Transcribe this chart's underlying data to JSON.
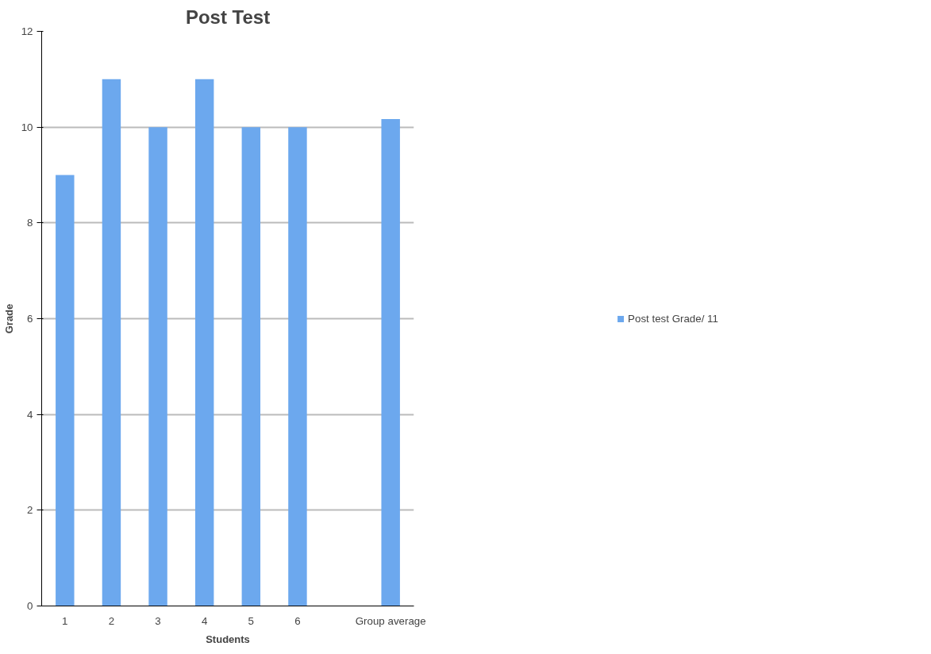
{
  "chart_data": {
    "type": "bar",
    "title": "Post Test",
    "xlabel": "Students",
    "ylabel": "Grade",
    "categories": [
      "1",
      "2",
      "3",
      "4",
      "5",
      "6",
      null,
      "Group average"
    ],
    "series": [
      {
        "name": "Post test Grade/ 11",
        "color": "#6ca8ee",
        "values": [
          9,
          11,
          10,
          11,
          10,
          10,
          null,
          10.17
        ]
      }
    ],
    "ylim": [
      0,
      12
    ],
    "yticks": [
      0,
      2,
      4,
      6,
      8,
      10,
      12
    ],
    "grid": "y",
    "legend": "right"
  }
}
